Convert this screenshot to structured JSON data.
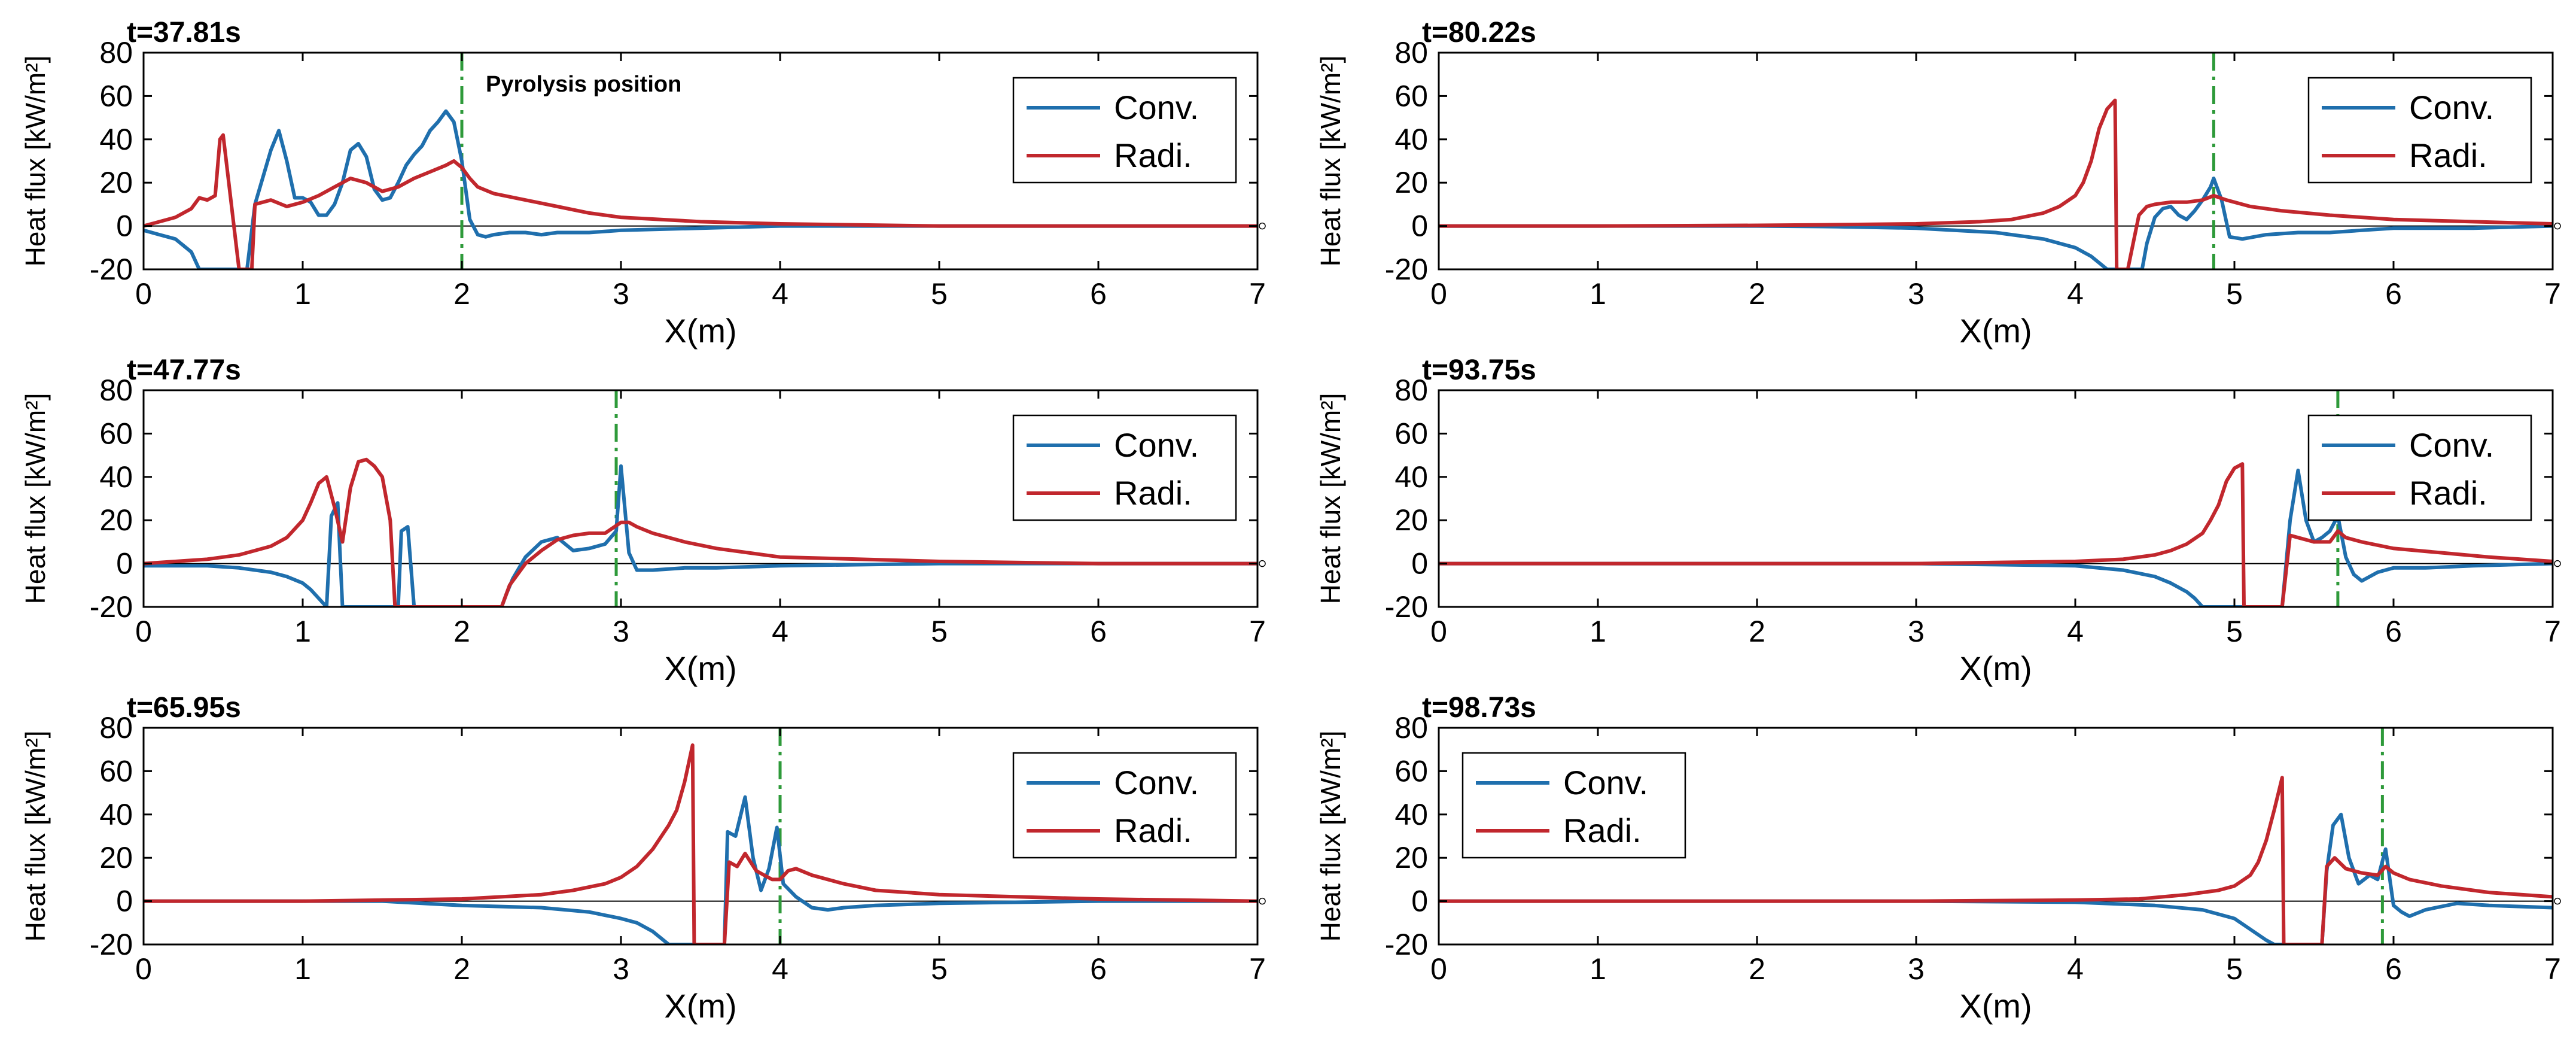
{
  "colors": {
    "conv": "#1f6fad",
    "radi": "#c1272d",
    "pyro": "#2e9a3a",
    "axis": "#000000"
  },
  "chart_data": [
    {
      "type": "line",
      "title": "t=37.81s",
      "xlabel": "X(m)",
      "ylabel": "Heat flux [kW/m²]",
      "xlim": [
        0,
        7
      ],
      "ylim": [
        -20,
        80
      ],
      "xticks": [
        "0",
        "1",
        "2",
        "3",
        "4",
        "5",
        "6",
        "7"
      ],
      "yticks": [
        "-20",
        "0",
        "20",
        "40",
        "60",
        "80"
      ],
      "legend": {
        "position": "top-right",
        "entries": [
          "Conv.",
          "Radi."
        ]
      },
      "pyrolysis_x": 2.0,
      "annotation": "Pyrolysis position",
      "series": [
        {
          "name": "Conv.",
          "x": [
            0,
            0.1,
            0.2,
            0.3,
            0.35,
            0.55,
            0.65,
            0.7,
            0.8,
            0.85,
            0.9,
            0.95,
            1.0,
            1.05,
            1.1,
            1.15,
            1.2,
            1.25,
            1.3,
            1.35,
            1.4,
            1.45,
            1.5,
            1.55,
            1.6,
            1.65,
            1.7,
            1.75,
            1.8,
            1.85,
            1.9,
            1.95,
            2.0,
            2.05,
            2.1,
            2.15,
            2.2,
            2.3,
            2.4,
            2.5,
            2.6,
            2.8,
            3.0,
            3.5,
            4.0,
            4.5,
            5.0,
            6.0,
            7.0
          ],
          "y": [
            -2,
            -4,
            -6,
            -12,
            -20,
            -20,
            -20,
            10,
            35,
            44,
            30,
            13,
            13,
            11,
            5,
            5,
            10,
            20,
            35,
            38,
            32,
            17,
            12,
            13,
            20,
            28,
            33,
            37,
            44,
            48,
            53,
            48,
            30,
            3,
            -4,
            -5,
            -4,
            -3,
            -3,
            -4,
            -3,
            -3,
            -2,
            -1,
            0,
            0,
            0,
            0,
            0
          ]
        },
        {
          "name": "Radi.",
          "x": [
            0,
            0.1,
            0.2,
            0.3,
            0.35,
            0.4,
            0.45,
            0.48,
            0.5,
            0.6,
            0.68,
            0.7,
            0.8,
            0.9,
            1.0,
            1.1,
            1.2,
            1.3,
            1.4,
            1.5,
            1.6,
            1.7,
            1.8,
            1.9,
            1.95,
            2.0,
            2.05,
            2.1,
            2.2,
            2.4,
            2.6,
            2.8,
            3.0,
            3.5,
            4.0,
            5.0,
            6.0,
            7.0
          ],
          "y": [
            0,
            2,
            4,
            8,
            13,
            12,
            14,
            40,
            42,
            -20,
            -20,
            10,
            12,
            9,
            11,
            14,
            18,
            22,
            20,
            16,
            18,
            22,
            25,
            28,
            30,
            27,
            22,
            18,
            15,
            12,
            9,
            6,
            4,
            2,
            1,
            0,
            0,
            0
          ]
        }
      ]
    },
    {
      "type": "line",
      "title": "t=80.22s",
      "xlabel": "X(m)",
      "ylabel": "Heat flux [kW/m²]",
      "xlim": [
        0,
        7
      ],
      "ylim": [
        -20,
        80
      ],
      "xticks": [
        "0",
        "1",
        "2",
        "3",
        "4",
        "5",
        "6",
        "7"
      ],
      "yticks": [
        "-20",
        "0",
        "20",
        "40",
        "60",
        "80"
      ],
      "legend": {
        "position": "top-right",
        "entries": [
          "Conv.",
          "Radi."
        ]
      },
      "pyrolysis_x": 4.87,
      "series": [
        {
          "name": "Conv.",
          "x": [
            0,
            1,
            2,
            2.5,
            3,
            3.5,
            3.8,
            4.0,
            4.1,
            4.2,
            4.42,
            4.45,
            4.5,
            4.55,
            4.6,
            4.65,
            4.7,
            4.75,
            4.8,
            4.85,
            4.87,
            4.92,
            4.97,
            5.05,
            5.2,
            5.4,
            5.6,
            5.8,
            6.0,
            6.5,
            7.0
          ],
          "y": [
            0,
            0,
            0,
            -0.3,
            -1,
            -3,
            -6,
            -10,
            -14,
            -20,
            -20,
            -8,
            4,
            8,
            9,
            5,
            3,
            7,
            12,
            18,
            22,
            12,
            -5,
            -6,
            -4,
            -3,
            -3,
            -2,
            -1,
            -1,
            0
          ]
        },
        {
          "name": "Radi.",
          "x": [
            0,
            1,
            2,
            2.5,
            3,
            3.4,
            3.6,
            3.8,
            3.9,
            4.0,
            4.05,
            4.1,
            4.15,
            4.2,
            4.25,
            4.26,
            4.33,
            4.4,
            4.45,
            4.5,
            4.6,
            4.7,
            4.8,
            4.87,
            4.95,
            5.1,
            5.3,
            5.6,
            6.0,
            6.5,
            7.0
          ],
          "y": [
            0,
            0,
            0.3,
            0.6,
            1,
            2,
            3,
            6,
            9,
            14,
            20,
            30,
            45,
            54,
            58,
            -20,
            -20,
            5,
            9,
            10,
            11,
            11,
            12,
            14,
            12,
            9,
            7,
            5,
            3,
            2,
            1
          ]
        }
      ]
    },
    {
      "type": "line",
      "title": "t=47.77s",
      "xlabel": "X(m)",
      "ylabel": "Heat flux [kW/m²]",
      "xlim": [
        0,
        7
      ],
      "ylim": [
        -20,
        80
      ],
      "xticks": [
        "0",
        "1",
        "2",
        "3",
        "4",
        "5",
        "6",
        "7"
      ],
      "yticks": [
        "-20",
        "0",
        "20",
        "40",
        "60",
        "80"
      ],
      "legend": {
        "position": "top-right",
        "entries": [
          "Conv.",
          "Radi."
        ]
      },
      "pyrolysis_x": 2.97,
      "series": [
        {
          "name": "Conv.",
          "x": [
            0,
            0.2,
            0.4,
            0.6,
            0.8,
            0.9,
            1.0,
            1.05,
            1.1,
            1.15,
            1.18,
            1.22,
            1.25,
            1.3,
            1.6,
            1.62,
            1.66,
            1.7,
            2.25,
            2.28,
            2.32,
            2.4,
            2.5,
            2.6,
            2.7,
            2.8,
            2.9,
            2.97,
            3.0,
            3.05,
            3.1,
            3.2,
            3.4,
            3.6,
            4.0,
            5.0,
            6.0,
            7.0
          ],
          "y": [
            -1,
            -1,
            -1,
            -2,
            -4,
            -6,
            -9,
            -12,
            -16,
            -20,
            22,
            28,
            -20,
            -20,
            -20,
            15,
            17,
            -20,
            -20,
            -14,
            -7,
            3,
            10,
            12,
            6,
            7,
            9,
            15,
            45,
            5,
            -3,
            -3,
            -2,
            -2,
            -1,
            0,
            0,
            0
          ]
        },
        {
          "name": "Radi.",
          "x": [
            0,
            0.2,
            0.4,
            0.6,
            0.8,
            0.9,
            1.0,
            1.05,
            1.1,
            1.15,
            1.2,
            1.25,
            1.3,
            1.35,
            1.4,
            1.45,
            1.5,
            1.55,
            1.58,
            2.25,
            2.3,
            2.4,
            2.5,
            2.6,
            2.7,
            2.8,
            2.9,
            3.0,
            3.05,
            3.1,
            3.2,
            3.4,
            3.6,
            3.8,
            4.0,
            5.0,
            6.0,
            7.0
          ],
          "y": [
            0,
            1,
            2,
            4,
            8,
            12,
            20,
            28,
            37,
            40,
            26,
            10,
            35,
            47,
            48,
            45,
            40,
            20,
            -20,
            -20,
            -10,
            0,
            6,
            11,
            13,
            14,
            14,
            19,
            19,
            17,
            14,
            10,
            7,
            5,
            3,
            1,
            0,
            0
          ]
        }
      ]
    },
    {
      "type": "line",
      "title": "t=93.75s",
      "xlabel": "X(m)",
      "ylabel": "Heat flux [kW/m²]",
      "xlim": [
        0,
        7
      ],
      "ylim": [
        -20,
        80
      ],
      "xticks": [
        "0",
        "1",
        "2",
        "3",
        "4",
        "5",
        "6",
        "7"
      ],
      "yticks": [
        "-20",
        "0",
        "20",
        "40",
        "60",
        "80"
      ],
      "legend": {
        "position": "top-right",
        "entries": [
          "Conv.",
          "Radi."
        ]
      },
      "pyrolysis_x": 5.65,
      "series": [
        {
          "name": "Conv.",
          "x": [
            0,
            1,
            2,
            3,
            3.5,
            4.0,
            4.3,
            4.5,
            4.6,
            4.7,
            4.75,
            4.8,
            4.85,
            5.3,
            5.35,
            5.4,
            5.45,
            5.5,
            5.55,
            5.6,
            5.65,
            5.7,
            5.75,
            5.8,
            5.9,
            6.0,
            6.2,
            6.5,
            7.0
          ],
          "y": [
            0,
            0,
            0,
            0,
            -0.5,
            -1,
            -3,
            -6,
            -9,
            -13,
            -16,
            -20,
            -20,
            -20,
            20,
            43,
            20,
            10,
            12,
            15,
            22,
            3,
            -5,
            -8,
            -4,
            -2,
            -2,
            -1,
            0
          ]
        },
        {
          "name": "Radi.",
          "x": [
            0,
            1,
            2,
            3,
            3.5,
            4.0,
            4.3,
            4.5,
            4.6,
            4.7,
            4.8,
            4.85,
            4.9,
            4.95,
            5.0,
            5.05,
            5.06,
            5.3,
            5.35,
            5.4,
            5.5,
            5.6,
            5.65,
            5.7,
            5.8,
            6.0,
            6.3,
            6.6,
            7.0
          ],
          "y": [
            0,
            0,
            0,
            0,
            0.5,
            1,
            2,
            4,
            6,
            9,
            14,
            20,
            27,
            38,
            44,
            46,
            -20,
            -20,
            13,
            12,
            10,
            10,
            15,
            12,
            10,
            7,
            5,
            3,
            1
          ]
        }
      ]
    },
    {
      "type": "line",
      "title": "t=65.95s",
      "xlabel": "X(m)",
      "ylabel": "Heat flux [kW/m²]",
      "xlim": [
        0,
        7
      ],
      "ylim": [
        -20,
        80
      ],
      "xticks": [
        "0",
        "1",
        "2",
        "3",
        "4",
        "5",
        "6",
        "7"
      ],
      "yticks": [
        "-20",
        "0",
        "20",
        "40",
        "60",
        "80"
      ],
      "legend": {
        "position": "top-right",
        "entries": [
          "Conv.",
          "Radi."
        ]
      },
      "pyrolysis_x": 4.0,
      "series": [
        {
          "name": "Conv.",
          "x": [
            0,
            1,
            1.5,
            2.0,
            2.5,
            2.8,
            3.0,
            3.1,
            3.2,
            3.3,
            3.4,
            3.65,
            3.67,
            3.72,
            3.78,
            3.83,
            3.88,
            3.93,
            3.98,
            4.02,
            4.1,
            4.2,
            4.3,
            4.4,
            4.6,
            5.0,
            6.0,
            7.0
          ],
          "y": [
            0,
            0,
            0,
            -2,
            -3,
            -5,
            -8,
            -10,
            -14,
            -20,
            -20,
            -20,
            32,
            30,
            48,
            20,
            5,
            15,
            34,
            8,
            2,
            -3,
            -4,
            -3,
            -2,
            -1,
            0,
            0
          ]
        },
        {
          "name": "Radi.",
          "x": [
            0,
            1,
            1.5,
            2.0,
            2.5,
            2.7,
            2.9,
            3.0,
            3.1,
            3.2,
            3.3,
            3.35,
            3.4,
            3.45,
            3.46,
            3.65,
            3.68,
            3.73,
            3.78,
            3.85,
            3.9,
            3.95,
            4.0,
            4.05,
            4.1,
            4.2,
            4.4,
            4.6,
            5.0,
            5.5,
            6.0,
            7.0
          ],
          "y": [
            0,
            0,
            0.5,
            1,
            3,
            5,
            8,
            11,
            16,
            24,
            35,
            42,
            55,
            72,
            -20,
            -20,
            18,
            16,
            22,
            14,
            12,
            10,
            10,
            14,
            15,
            12,
            8,
            5,
            3,
            2,
            1,
            0
          ]
        }
      ]
    },
    {
      "type": "line",
      "title": "t=98.73s",
      "xlabel": "X(m)",
      "ylabel": "Heat flux [kW/m²]",
      "xlim": [
        0,
        7
      ],
      "ylim": [
        -20,
        80
      ],
      "xticks": [
        "0",
        "1",
        "2",
        "3",
        "4",
        "5",
        "6",
        "7"
      ],
      "yticks": [
        "-20",
        "0",
        "20",
        "40",
        "60",
        "80"
      ],
      "legend": {
        "position": "top-left",
        "entries": [
          "Conv.",
          "Radi."
        ]
      },
      "pyrolysis_x": 5.93,
      "series": [
        {
          "name": "Conv.",
          "x": [
            0,
            1,
            2,
            3,
            4,
            4.5,
            4.8,
            5.0,
            5.1,
            5.2,
            5.25,
            5.3,
            5.55,
            5.58,
            5.62,
            5.67,
            5.72,
            5.78,
            5.85,
            5.9,
            5.95,
            6.0,
            6.05,
            6.1,
            6.2,
            6.4,
            6.6,
            7.0
          ],
          "y": [
            0,
            0,
            0,
            0,
            -0.5,
            -2,
            -4,
            -8,
            -13,
            -18,
            -20,
            -20,
            -20,
            14,
            35,
            40,
            20,
            8,
            12,
            10,
            24,
            -2,
            -5,
            -7,
            -4,
            -1,
            -2,
            -3
          ]
        },
        {
          "name": "Radi.",
          "x": [
            0,
            1,
            2,
            3,
            4,
            4.4,
            4.7,
            4.9,
            5.0,
            5.1,
            5.15,
            5.2,
            5.25,
            5.3,
            5.31,
            5.55,
            5.58,
            5.63,
            5.7,
            5.8,
            5.9,
            5.95,
            6.0,
            6.1,
            6.3,
            6.6,
            7.0
          ],
          "y": [
            0,
            0,
            0,
            0,
            0.5,
            1,
            3,
            5,
            7,
            12,
            18,
            28,
            42,
            57,
            -20,
            -20,
            16,
            20,
            15,
            13,
            12,
            16,
            13,
            10,
            7,
            4,
            2
          ]
        }
      ]
    }
  ]
}
